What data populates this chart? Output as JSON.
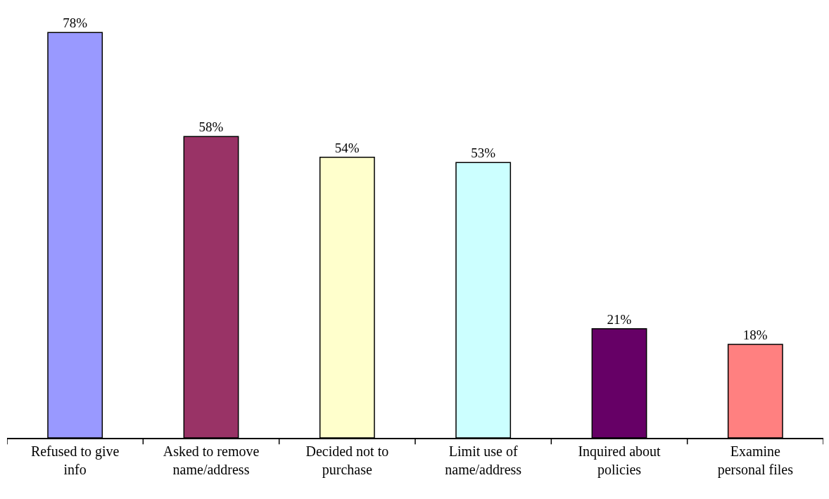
{
  "chart_data": {
    "type": "bar",
    "categories": [
      "Refused to give info",
      "Asked to remove name/address",
      "Decided not to purchase",
      "Limit use of name/address",
      "Inquired about policies",
      "Examine personal files"
    ],
    "values": [
      78,
      58,
      54,
      53,
      21,
      18
    ],
    "value_labels": [
      "78%",
      "58%",
      "54%",
      "53%",
      "21%",
      "18%"
    ],
    "colors": [
      "#9999ff",
      "#993366",
      "#ffffcc",
      "#ccffff",
      "#660066",
      "#ff8080"
    ]
  }
}
